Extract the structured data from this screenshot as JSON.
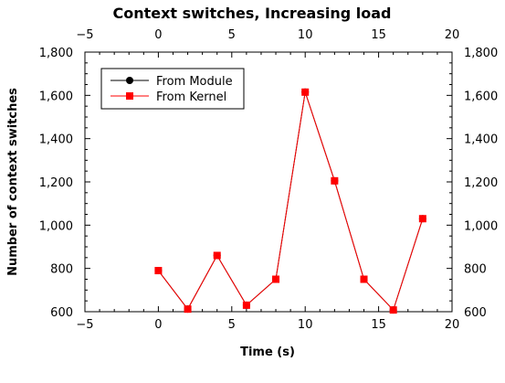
{
  "chart_data": {
    "type": "line",
    "title": "Context switches, Increasing load",
    "xlabel": "Time (s)",
    "ylabel": "Number of context switches",
    "xlim": [
      -5,
      20
    ],
    "ylim": [
      600,
      1800
    ],
    "x_ticks": [
      -5,
      0,
      5,
      10,
      15,
      20
    ],
    "x_tick_labels": [
      "−5",
      "0",
      "5",
      "10",
      "15",
      "20"
    ],
    "y_ticks": [
      600,
      800,
      1000,
      1200,
      1400,
      1600,
      1800
    ],
    "y_tick_labels": [
      "600",
      "800",
      "1,000",
      "1,200",
      "1,400",
      "1,600",
      "1,800"
    ],
    "grid": false,
    "legend_position": "top-left",
    "series": [
      {
        "name": "From Module",
        "color": "#000000",
        "marker": "circle",
        "x": [
          0,
          2,
          4,
          6,
          8,
          10,
          12,
          14,
          16,
          18
        ],
        "values": [
          790,
          612,
          860,
          630,
          750,
          1615,
          1205,
          750,
          608,
          1030
        ]
      },
      {
        "name": "From Kernel",
        "color": "#ff0000",
        "marker": "square",
        "x": [
          0,
          2,
          4,
          6,
          8,
          10,
          12,
          14,
          16,
          18
        ],
        "values": [
          790,
          612,
          860,
          630,
          750,
          1615,
          1205,
          750,
          608,
          1030
        ]
      }
    ]
  }
}
